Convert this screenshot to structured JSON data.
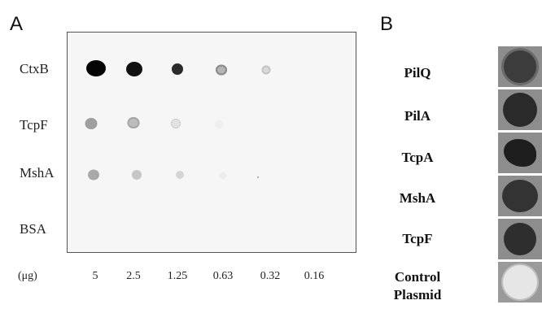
{
  "panel_a": {
    "letter": "A",
    "rows": [
      "CtxB",
      "TcpF",
      "MshA",
      "BSA"
    ],
    "unit_label": "(μg)",
    "amounts": [
      "5",
      "2.5",
      "1.25",
      "0.63",
      "0.32",
      "0.16"
    ]
  },
  "panel_b": {
    "letter": "B",
    "labels": [
      "PilQ",
      "PilA",
      "TcpA",
      "MshA",
      "TcpF",
      "Control\nPlasmid"
    ]
  }
}
